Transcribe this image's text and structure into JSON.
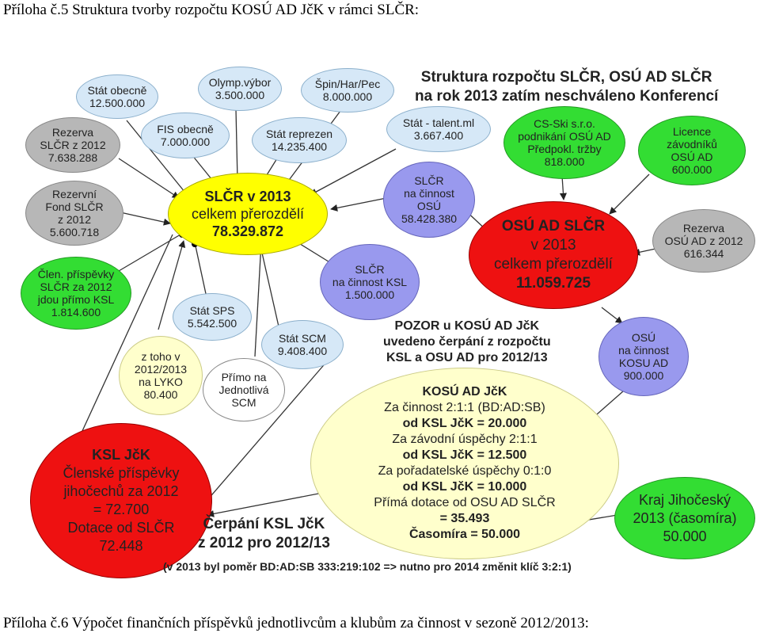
{
  "captions": {
    "top": "Příloha č.5 Struktura tvorby rozpočtu KOSÚ AD JčK v rámci SLČR:",
    "bottom": "Příloha č.6 Výpočet finančních příspěvků jednotlivcům a klubům za činnost v sezoně 2012/2013:"
  },
  "colors": {
    "blue": "#d6e8f7",
    "grey": "#b7b7b7",
    "yellow": "#ffff00",
    "purple": "#9999ee",
    "red": "#ee1111",
    "green": "#33dd33",
    "cream": "#ffffcc",
    "white": "#ffffff"
  },
  "nodes": {
    "stat_obecne": {
      "lines": [
        "Stát obecně",
        "12.500.000"
      ]
    },
    "olymp": {
      "lines": [
        "Olymp.výbor",
        "3.500.000"
      ]
    },
    "spin": {
      "lines": [
        "Špin/Har/Pec",
        "8.000.000"
      ]
    },
    "fis": {
      "lines": [
        "FIS obecně",
        "7.000.000"
      ]
    },
    "stat_reprezen": {
      "lines": [
        "Stát reprezen",
        "14.235.400"
      ]
    },
    "stat_talent": {
      "lines": [
        "Stát - talent.ml",
        "3.667.400"
      ]
    },
    "rezerva_slcr": {
      "lines": [
        "Rezerva",
        "SLČR z 2012",
        "7.638.288"
      ]
    },
    "rezervni_fond": {
      "lines": [
        "Rezervní",
        "Fond SLČR",
        "z 2012",
        "5.600.718"
      ]
    },
    "clen_prispevky": {
      "lines": [
        "Člen. příspěvky",
        "SLČR za 2012",
        "jdou přímo KSL",
        "1.814.600"
      ]
    },
    "slcr_main": {
      "lines": [
        "SLČR v 2013",
        "celkem přerozdělí",
        "78.329.872"
      ]
    },
    "slcr_osu": {
      "lines": [
        "SLČR",
        "na činnost",
        "OSÚ",
        "58.428.380"
      ]
    },
    "cs_ski": {
      "lines": [
        "CS-Ski s.r.o.",
        "podnikání OSÚ AD",
        "Předpokl. tržby",
        "818.000"
      ]
    },
    "licence": {
      "lines": [
        "Licence",
        "závodníků",
        "OSÚ AD",
        "600.000"
      ]
    },
    "osu_main": {
      "lines": [
        "OSÚ AD SLČR",
        "v 2013",
        "celkem přerozdělí",
        "11.059.725"
      ]
    },
    "rezerva_osu": {
      "lines": [
        "Rezerva",
        "OSÚ AD z 2012",
        "616.344"
      ]
    },
    "slcr_ksl": {
      "lines": [
        "SLČR",
        "na činnost KSL",
        "1.500.000"
      ]
    },
    "stat_sps": {
      "lines": [
        "Stát SPS",
        "5.542.500"
      ]
    },
    "stat_scm": {
      "lines": [
        "Stát SCM",
        "9.408.400"
      ]
    },
    "lyko": {
      "lines": [
        "z toho v",
        "2012/2013",
        "na LYKO",
        "80.400"
      ]
    },
    "primo": {
      "lines": [
        "Přímo na",
        "Jednotlivá",
        "SCM"
      ]
    },
    "osu_kosu": {
      "lines": [
        "OSÚ",
        "na činnost",
        "KOSU AD",
        "900.000"
      ]
    },
    "ksl_jck": {
      "lines": [
        "KSL JčK",
        "Členské příspěvky",
        "jihočechů za 2012",
        "= 72.700",
        "Dotace od SLČR",
        "72.448"
      ]
    },
    "kosu": {
      "lines": [
        "KOSÚ AD JčK",
        "Za činnost 2:1:1 (BD:AD:SB)",
        "od KSL JčK = 20.000",
        "Za závodní úspěchy 2:1:1",
        "od KSL JčK = 12.500",
        "Za pořadatelské úspěchy 0:1:0",
        "od KSL JčK = 10.000",
        "Přímá dotace od OSU AD SLČR",
        "= 35.493",
        "Časomíra = 50.000"
      ]
    },
    "kraj": {
      "lines": [
        "Kraj Jihočeský",
        "2013 (časomíra)",
        "50.000"
      ]
    }
  },
  "texts": {
    "struktura": [
      "Struktura rozpočtu SLČR, OSÚ AD SLČR",
      "na rok 2013 zatím neschváleno Konferencí"
    ],
    "pozor": [
      "POZOR u KOSÚ AD JčK",
      "uvedeno čerpání z rozpočtu",
      "KSL a OSU AD pro 2012/13"
    ],
    "cerpani": [
      "Čerpání KSL JčK",
      "z 2012 pro 2012/13"
    ],
    "footnote": "(v 2013 byl poměr BD:AD:SB 333:219:102 => nutno pro 2014 změnit klíč 3:2:1)"
  }
}
